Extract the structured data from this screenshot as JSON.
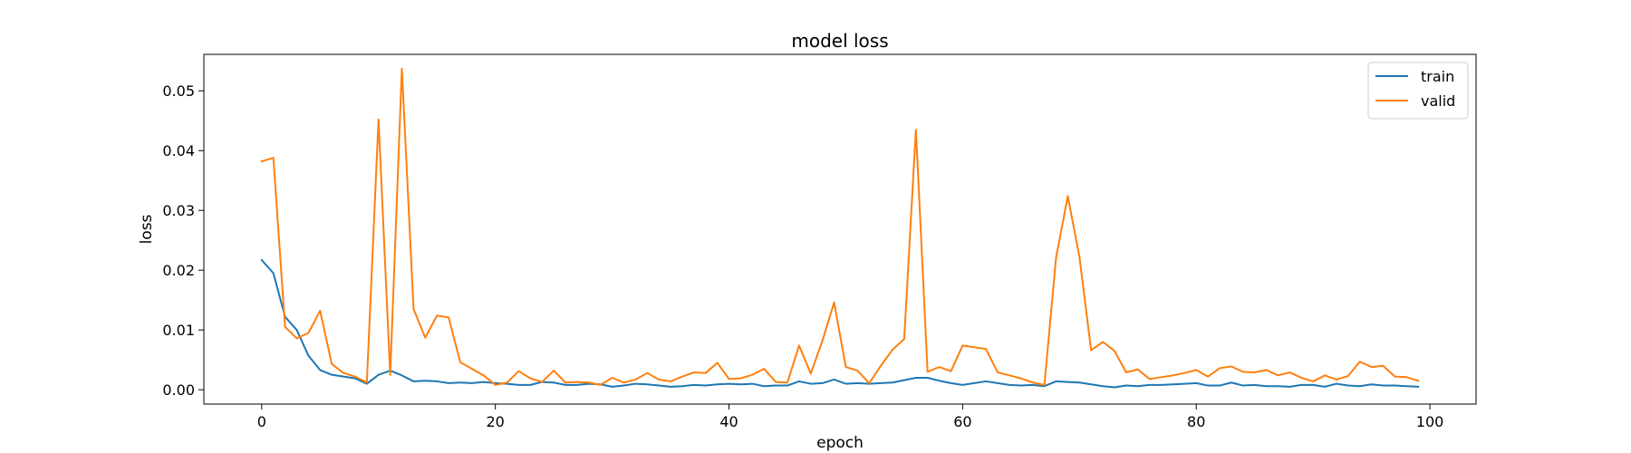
{
  "chart_data": {
    "type": "line",
    "title": "model loss",
    "xlabel": "epoch",
    "ylabel": "loss",
    "xlim": [
      -4.95,
      103.95
    ],
    "ylim": [
      -0.0024,
      0.0561
    ],
    "xticks": [
      0,
      20,
      40,
      60,
      80,
      100
    ],
    "xtick_labels": [
      "0",
      "20",
      "40",
      "60",
      "80",
      "100"
    ],
    "yticks": [
      0.0,
      0.01,
      0.02,
      0.03,
      0.04,
      0.05
    ],
    "ytick_labels": [
      "0.00",
      "0.01",
      "0.02",
      "0.03",
      "0.04",
      "0.05"
    ],
    "grid": false,
    "legend_position": "top-right",
    "series": [
      {
        "name": "train",
        "color": "#1f77b4",
        "values": [
          0.0217,
          0.0195,
          0.0122,
          0.01,
          0.0057,
          0.0033,
          0.0025,
          0.0022,
          0.0019,
          0.001,
          0.0025,
          0.0032,
          0.0024,
          0.0014,
          0.0015,
          0.0014,
          0.0011,
          0.0012,
          0.0011,
          0.0013,
          0.0011,
          0.001,
          0.0008,
          0.0008,
          0.0013,
          0.0012,
          0.0008,
          0.0008,
          0.001,
          0.0009,
          0.0005,
          0.0007,
          0.001,
          0.0009,
          0.0007,
          0.0005,
          0.0006,
          0.0008,
          0.0007,
          0.0009,
          0.001,
          0.0009,
          0.001,
          0.0006,
          0.0007,
          0.0007,
          0.0014,
          0.001,
          0.0011,
          0.0017,
          0.001,
          0.0011,
          0.001,
          0.0011,
          0.0012,
          0.0016,
          0.002,
          0.002,
          0.0015,
          0.0011,
          0.0008,
          0.0011,
          0.0014,
          0.0011,
          0.0008,
          0.0007,
          0.0008,
          0.0006,
          0.0014,
          0.0013,
          0.0012,
          0.0009,
          0.0006,
          0.0004,
          0.0007,
          0.0006,
          0.0008,
          0.0008,
          0.0009,
          0.001,
          0.0011,
          0.0007,
          0.0007,
          0.0012,
          0.0007,
          0.0008,
          0.0006,
          0.0006,
          0.0005,
          0.0008,
          0.0008,
          0.0005,
          0.001,
          0.0007,
          0.0006,
          0.0009,
          0.0007,
          0.0007,
          0.0006,
          0.0005
        ]
      },
      {
        "name": "valid",
        "color": "#ff7f0e",
        "values": [
          0.0382,
          0.0388,
          0.0105,
          0.0086,
          0.0095,
          0.0132,
          0.0043,
          0.0028,
          0.0022,
          0.0012,
          0.0452,
          0.0025,
          0.0537,
          0.0135,
          0.0087,
          0.0124,
          0.0121,
          0.0046,
          0.0035,
          0.0024,
          0.0008,
          0.0012,
          0.0031,
          0.0019,
          0.0013,
          0.0032,
          0.0012,
          0.0013,
          0.0012,
          0.0008,
          0.002,
          0.0012,
          0.0017,
          0.0028,
          0.0017,
          0.0014,
          0.0022,
          0.0029,
          0.0028,
          0.0045,
          0.0018,
          0.0019,
          0.0025,
          0.0035,
          0.0013,
          0.0012,
          0.0074,
          0.0027,
          0.0082,
          0.0146,
          0.0038,
          0.0032,
          0.0011,
          0.004,
          0.0067,
          0.0085,
          0.0435,
          0.003,
          0.0038,
          0.0031,
          0.0074,
          0.0071,
          0.0068,
          0.0029,
          0.0024,
          0.0019,
          0.0012,
          0.0008,
          0.0221,
          0.0324,
          0.0222,
          0.0066,
          0.008,
          0.0065,
          0.0029,
          0.0034,
          0.0018,
          0.0021,
          0.0024,
          0.0028,
          0.0033,
          0.0022,
          0.0036,
          0.0039,
          0.003,
          0.0029,
          0.0033,
          0.0024,
          0.0029,
          0.002,
          0.0014,
          0.0024,
          0.0017,
          0.0023,
          0.0047,
          0.0038,
          0.004,
          0.0022,
          0.0021,
          0.0015
        ]
      }
    ]
  }
}
